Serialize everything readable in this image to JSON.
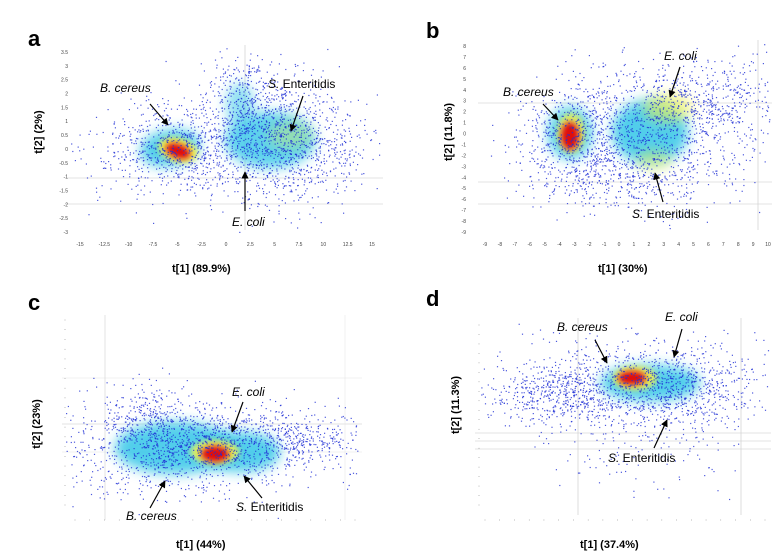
{
  "colors": {
    "sparse": "#1f2fd6",
    "mid": "#33c6e8",
    "dense": "#f4f14a",
    "peak": "#e01010"
  },
  "chart_data": [
    {
      "panel": "a",
      "type": "scatter",
      "xlabel": "t[1] (89.9%)",
      "ylabel": "t[2] (2%)",
      "xlim": [
        -15,
        15
      ],
      "ylim": [
        -3,
        3.5
      ],
      "xticks": [
        "-15",
        "-12.5",
        "-10",
        "-7.5",
        "-5",
        "-2.5",
        "0",
        "2.5",
        "5",
        "7.5",
        "10",
        "12.5",
        "15"
      ],
      "yticks": [
        "3.5",
        "3",
        "2.5",
        "2",
        "1.5",
        "1",
        "0.5",
        "0",
        "-0.5",
        "-1",
        "-1.5",
        "-2",
        "-2.5",
        "-3"
      ],
      "annotations": [
        {
          "species": "B. cereus",
          "italic": "B. cereus",
          "roman": ""
        },
        {
          "species": "S. Enteritidis",
          "italic": "S.",
          "roman": " Enteritidis"
        },
        {
          "species": "E. coli",
          "italic": "E. coli",
          "roman": ""
        }
      ],
      "clusters": [
        {
          "label": "B. cereus",
          "center": [
            -4.5,
            0.0
          ]
        },
        {
          "label": "S. Enteritidis",
          "center": [
            5.5,
            0.3
          ]
        },
        {
          "label": "E. coli",
          "center": [
            2.0,
            0.6
          ]
        }
      ]
    },
    {
      "panel": "b",
      "type": "scatter",
      "xlabel": "t[1] (30%)",
      "ylabel": "t[2] (11.8%)",
      "xlim": [
        -9,
        10
      ],
      "ylim": [
        -9,
        8
      ],
      "xticks": [
        "-9",
        "-8",
        "-7",
        "-6",
        "-5",
        "-4",
        "-3",
        "-2",
        "-1",
        "0",
        "1",
        "2",
        "3",
        "4",
        "5",
        "6",
        "7",
        "8",
        "9",
        "10"
      ],
      "yticks": [
        "8",
        "7",
        "6",
        "5",
        "4",
        "3",
        "2",
        "1",
        "0",
        "-1",
        "-2",
        "-3",
        "-4",
        "-5",
        "-6",
        "-7",
        "-8",
        "-9"
      ],
      "annotations": [
        {
          "species": "B. cereus",
          "italic": "B. cereus",
          "roman": ""
        },
        {
          "species": "E. coli",
          "italic": "E. coli",
          "roman": ""
        },
        {
          "species": "S. Enteritidis",
          "italic": "S.",
          "roman": " Enteritidis"
        }
      ],
      "clusters": [
        {
          "label": "B. cereus",
          "center": [
            -3.0,
            0.5
          ]
        },
        {
          "label": "E. coli",
          "center": [
            3.0,
            1.5
          ]
        },
        {
          "label": "S. Enteritidis",
          "center": [
            2.5,
            -2.5
          ]
        }
      ]
    },
    {
      "panel": "c",
      "type": "scatter",
      "xlabel": "t[1] (44%)",
      "ylabel": "t[2] (23%)",
      "xticks": [],
      "yticks": [],
      "annotations": [
        {
          "species": "E. coli",
          "italic": "E. coli",
          "roman": ""
        },
        {
          "species": "B. cereus",
          "italic": "B. cereus",
          "roman": ""
        },
        {
          "species": "S. Enteritidis",
          "italic": "S.",
          "roman": " Enteritidis"
        }
      ]
    },
    {
      "panel": "d",
      "type": "scatter",
      "xlabel": "t[1] (37.4%)",
      "ylabel": "t[2] (11.3%)",
      "xticks": [],
      "yticks": [],
      "annotations": [
        {
          "species": "B. cereus",
          "italic": "B. cereus",
          "roman": ""
        },
        {
          "species": "E. coli",
          "italic": "E. coli",
          "roman": ""
        },
        {
          "species": "S. Enteritidis",
          "italic": "S.",
          "roman": " Enteritidis"
        }
      ]
    }
  ]
}
